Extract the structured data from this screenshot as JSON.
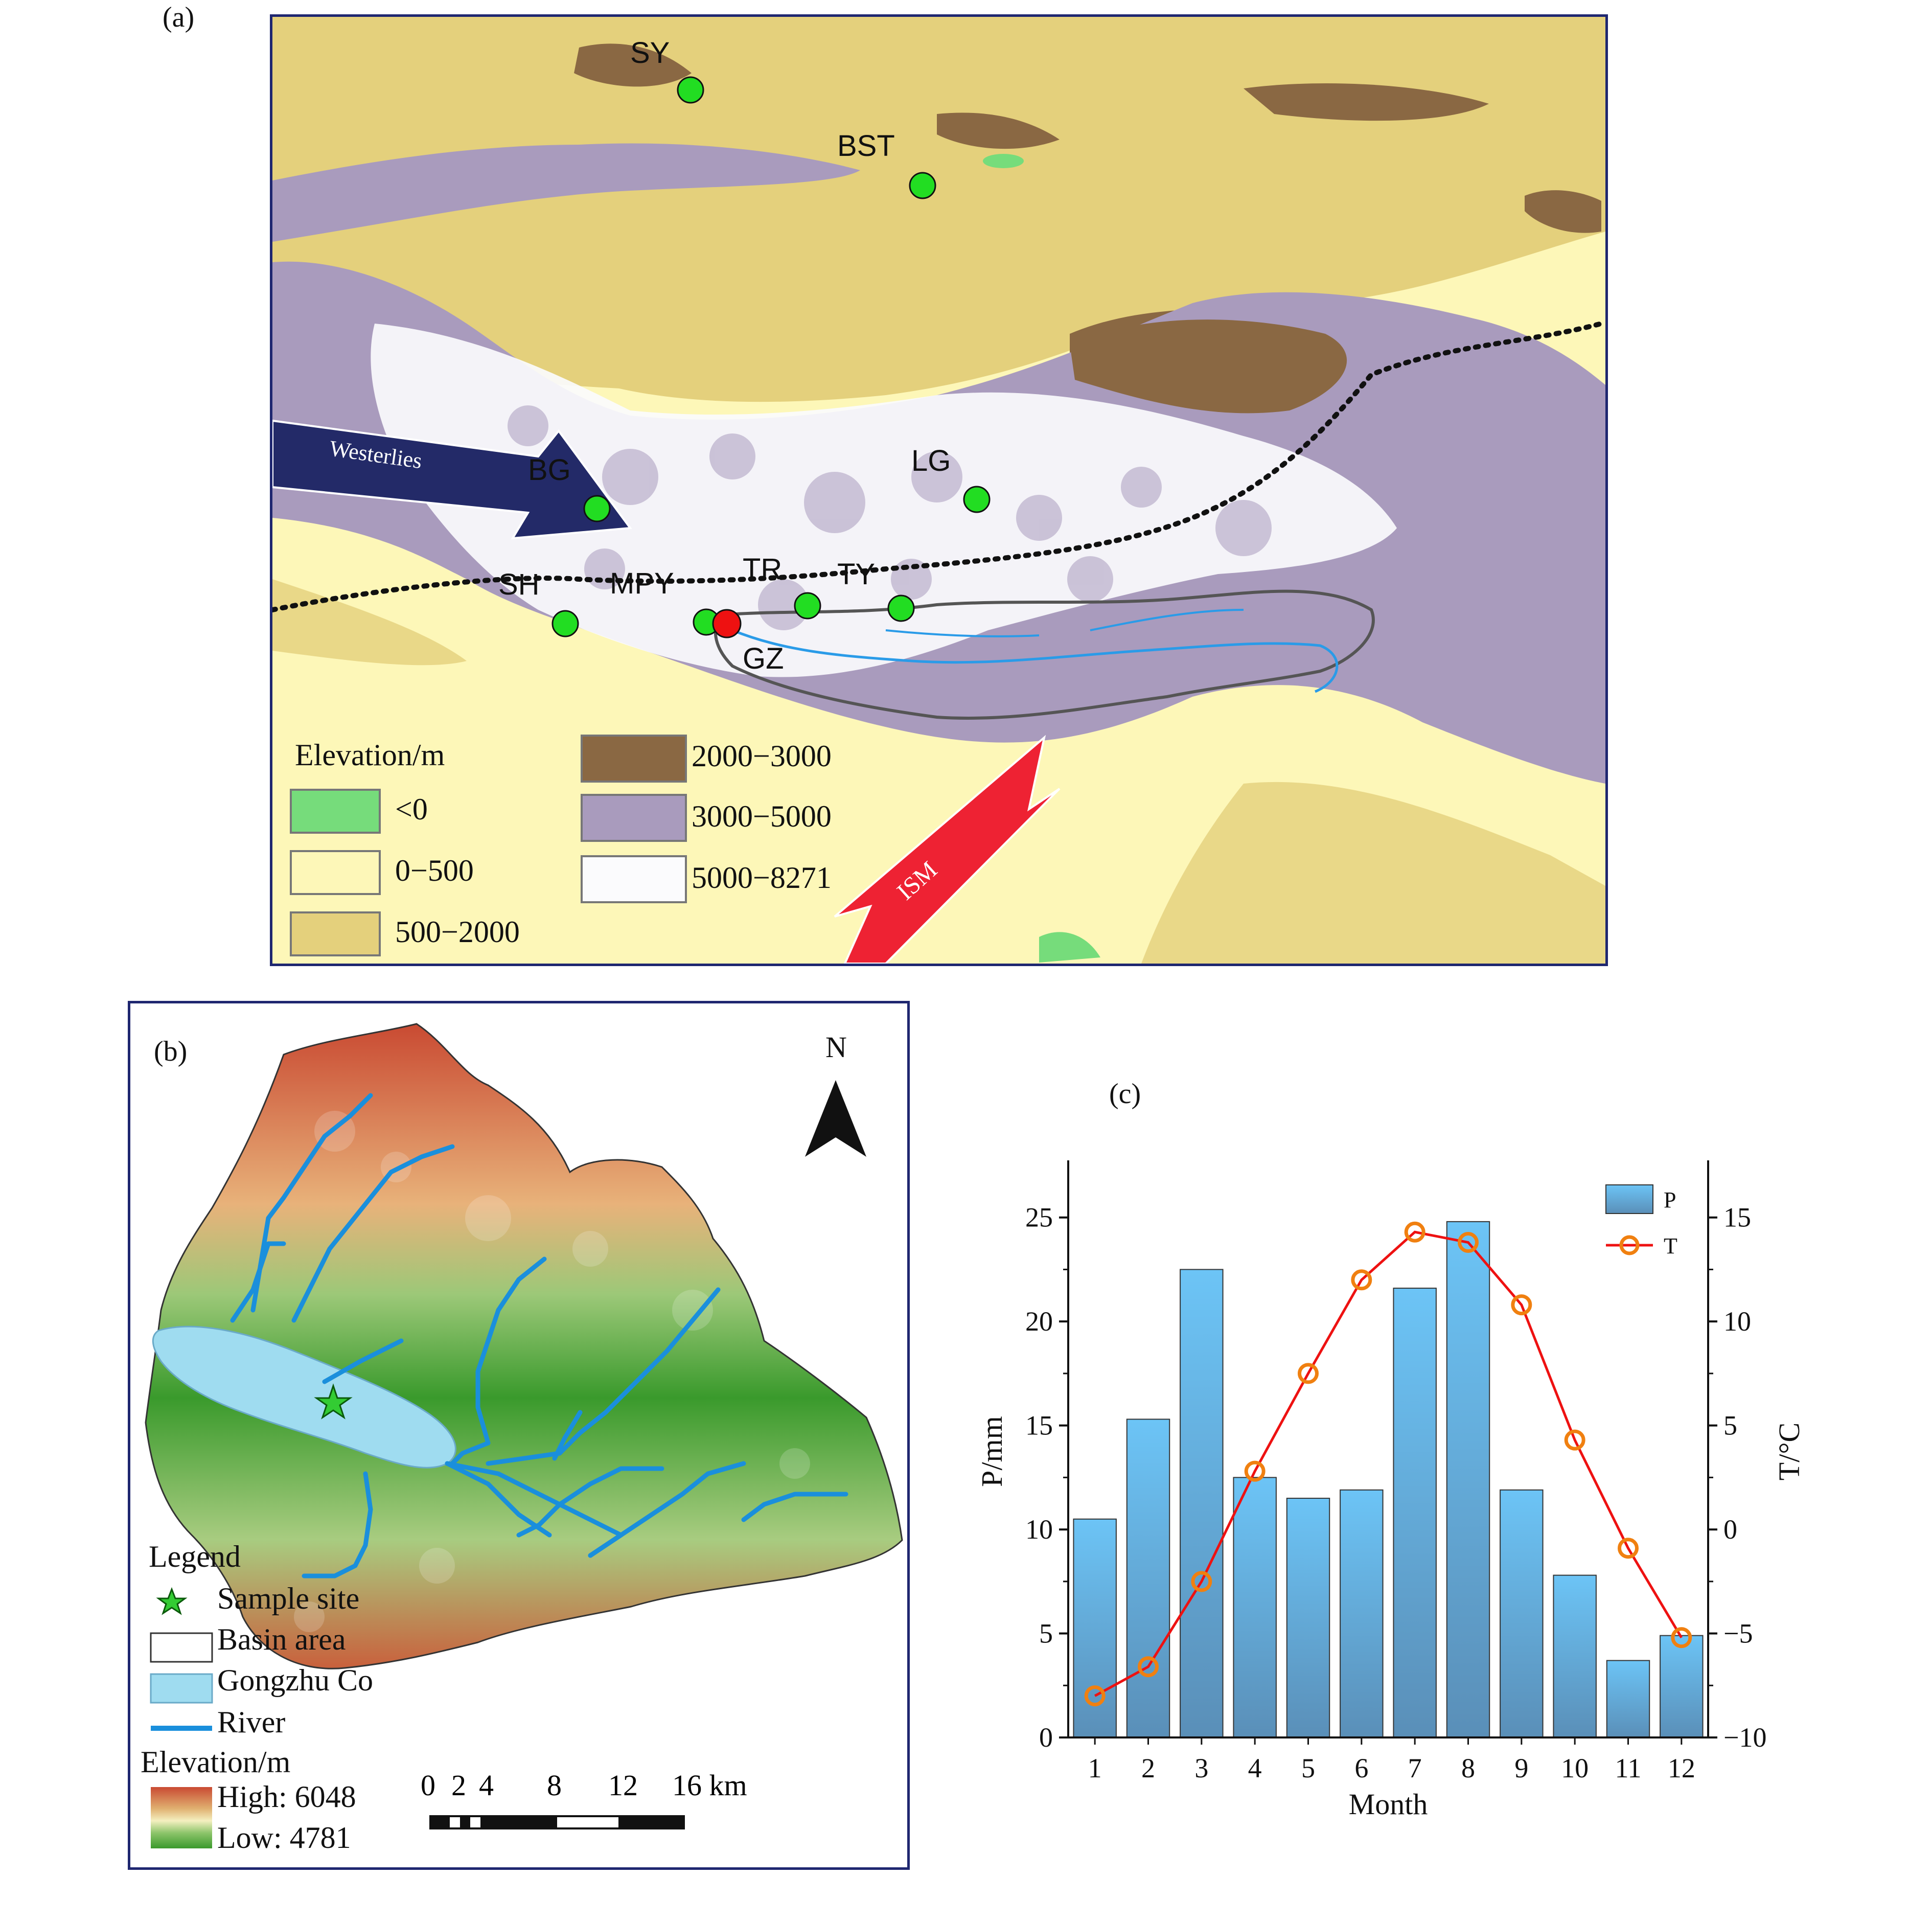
{
  "panels": {
    "a": {
      "label": "(a)"
    },
    "b": {
      "label": "(b)"
    },
    "c": {
      "label": "(c)"
    }
  },
  "map_a": {
    "sites": [
      {
        "code": "SY",
        "color": "#22dd22"
      },
      {
        "code": "BST",
        "color": "#22dd22"
      },
      {
        "code": "BG",
        "color": "#22dd22"
      },
      {
        "code": "LG",
        "color": "#22dd22"
      },
      {
        "code": "SH",
        "color": "#22dd22"
      },
      {
        "code": "MPY",
        "color": "#22dd22"
      },
      {
        "code": "TR",
        "color": "#22dd22"
      },
      {
        "code": "TY",
        "color": "#22dd22"
      },
      {
        "code": "GZ",
        "color": "#ee1111"
      }
    ],
    "arrows": {
      "westerlies": {
        "label": "Westerlies",
        "color": "#232a68"
      },
      "ism": {
        "label": "ISM",
        "color": "#ee2233"
      }
    },
    "legend": {
      "title": "Elevation/m",
      "classes": [
        {
          "label": "<0",
          "color": "#76dc7b"
        },
        {
          "label": "0−500",
          "color": "#fdf7b8"
        },
        {
          "label": "500−2000",
          "color": "#e4d07c"
        },
        {
          "label": "2000−3000",
          "color": "#8a6843"
        },
        {
          "label": "3000−5000",
          "color": "#a99bbd"
        },
        {
          "label": "5000−8271",
          "color": "#fbfbfd"
        }
      ]
    }
  },
  "map_b": {
    "north": "N",
    "legend": {
      "title": "Legend",
      "items": [
        {
          "label": "Sample site",
          "icon": "star-icon"
        },
        {
          "label": "Basin area",
          "icon": "outline-box-icon"
        },
        {
          "label": "Gongzhu Co",
          "icon": "lake-swatch-icon"
        },
        {
          "label": "River",
          "icon": "river-line-icon"
        }
      ],
      "elevation_title": "Elevation/m",
      "high": "High: 6048",
      "low": "Low: 4781"
    },
    "scale_bar": {
      "labels": [
        "0",
        "2",
        "4",
        "8",
        "12",
        "16 km"
      ]
    },
    "colors": {
      "lake": "#9fdcf0",
      "river": "#1a8fdc",
      "high": "#c94a32",
      "low": "#3a9a2c"
    }
  },
  "chart_data": {
    "type": "bar",
    "categories": [
      "1",
      "2",
      "3",
      "4",
      "5",
      "6",
      "7",
      "8",
      "9",
      "10",
      "11",
      "12"
    ],
    "series": [
      {
        "name": "P",
        "type": "bar",
        "axis": "left",
        "values": [
          10.5,
          15.3,
          22.5,
          12.5,
          11.5,
          11.9,
          21.6,
          24.8,
          11.9,
          7.8,
          3.7,
          4.9
        ]
      },
      {
        "name": "T",
        "type": "line",
        "axis": "right",
        "values": [
          -8.0,
          -6.6,
          -2.5,
          2.8,
          7.5,
          12.0,
          14.3,
          13.8,
          10.8,
          4.3,
          -0.9,
          -5.2
        ]
      }
    ],
    "xlabel": "Month",
    "ylabel": "P/mm",
    "y2label": "T/°C",
    "ylim": [
      0,
      27.5
    ],
    "y2lim": [
      -10,
      17.5
    ],
    "yticks": [
      0,
      5,
      10,
      15,
      20,
      25
    ],
    "y2ticks": [
      -10,
      -5,
      0,
      5,
      10,
      15
    ],
    "legend_position": "top-right",
    "colors": {
      "bar": "#5fb6ea",
      "line": "#ee1111",
      "marker": "#f08010"
    }
  }
}
